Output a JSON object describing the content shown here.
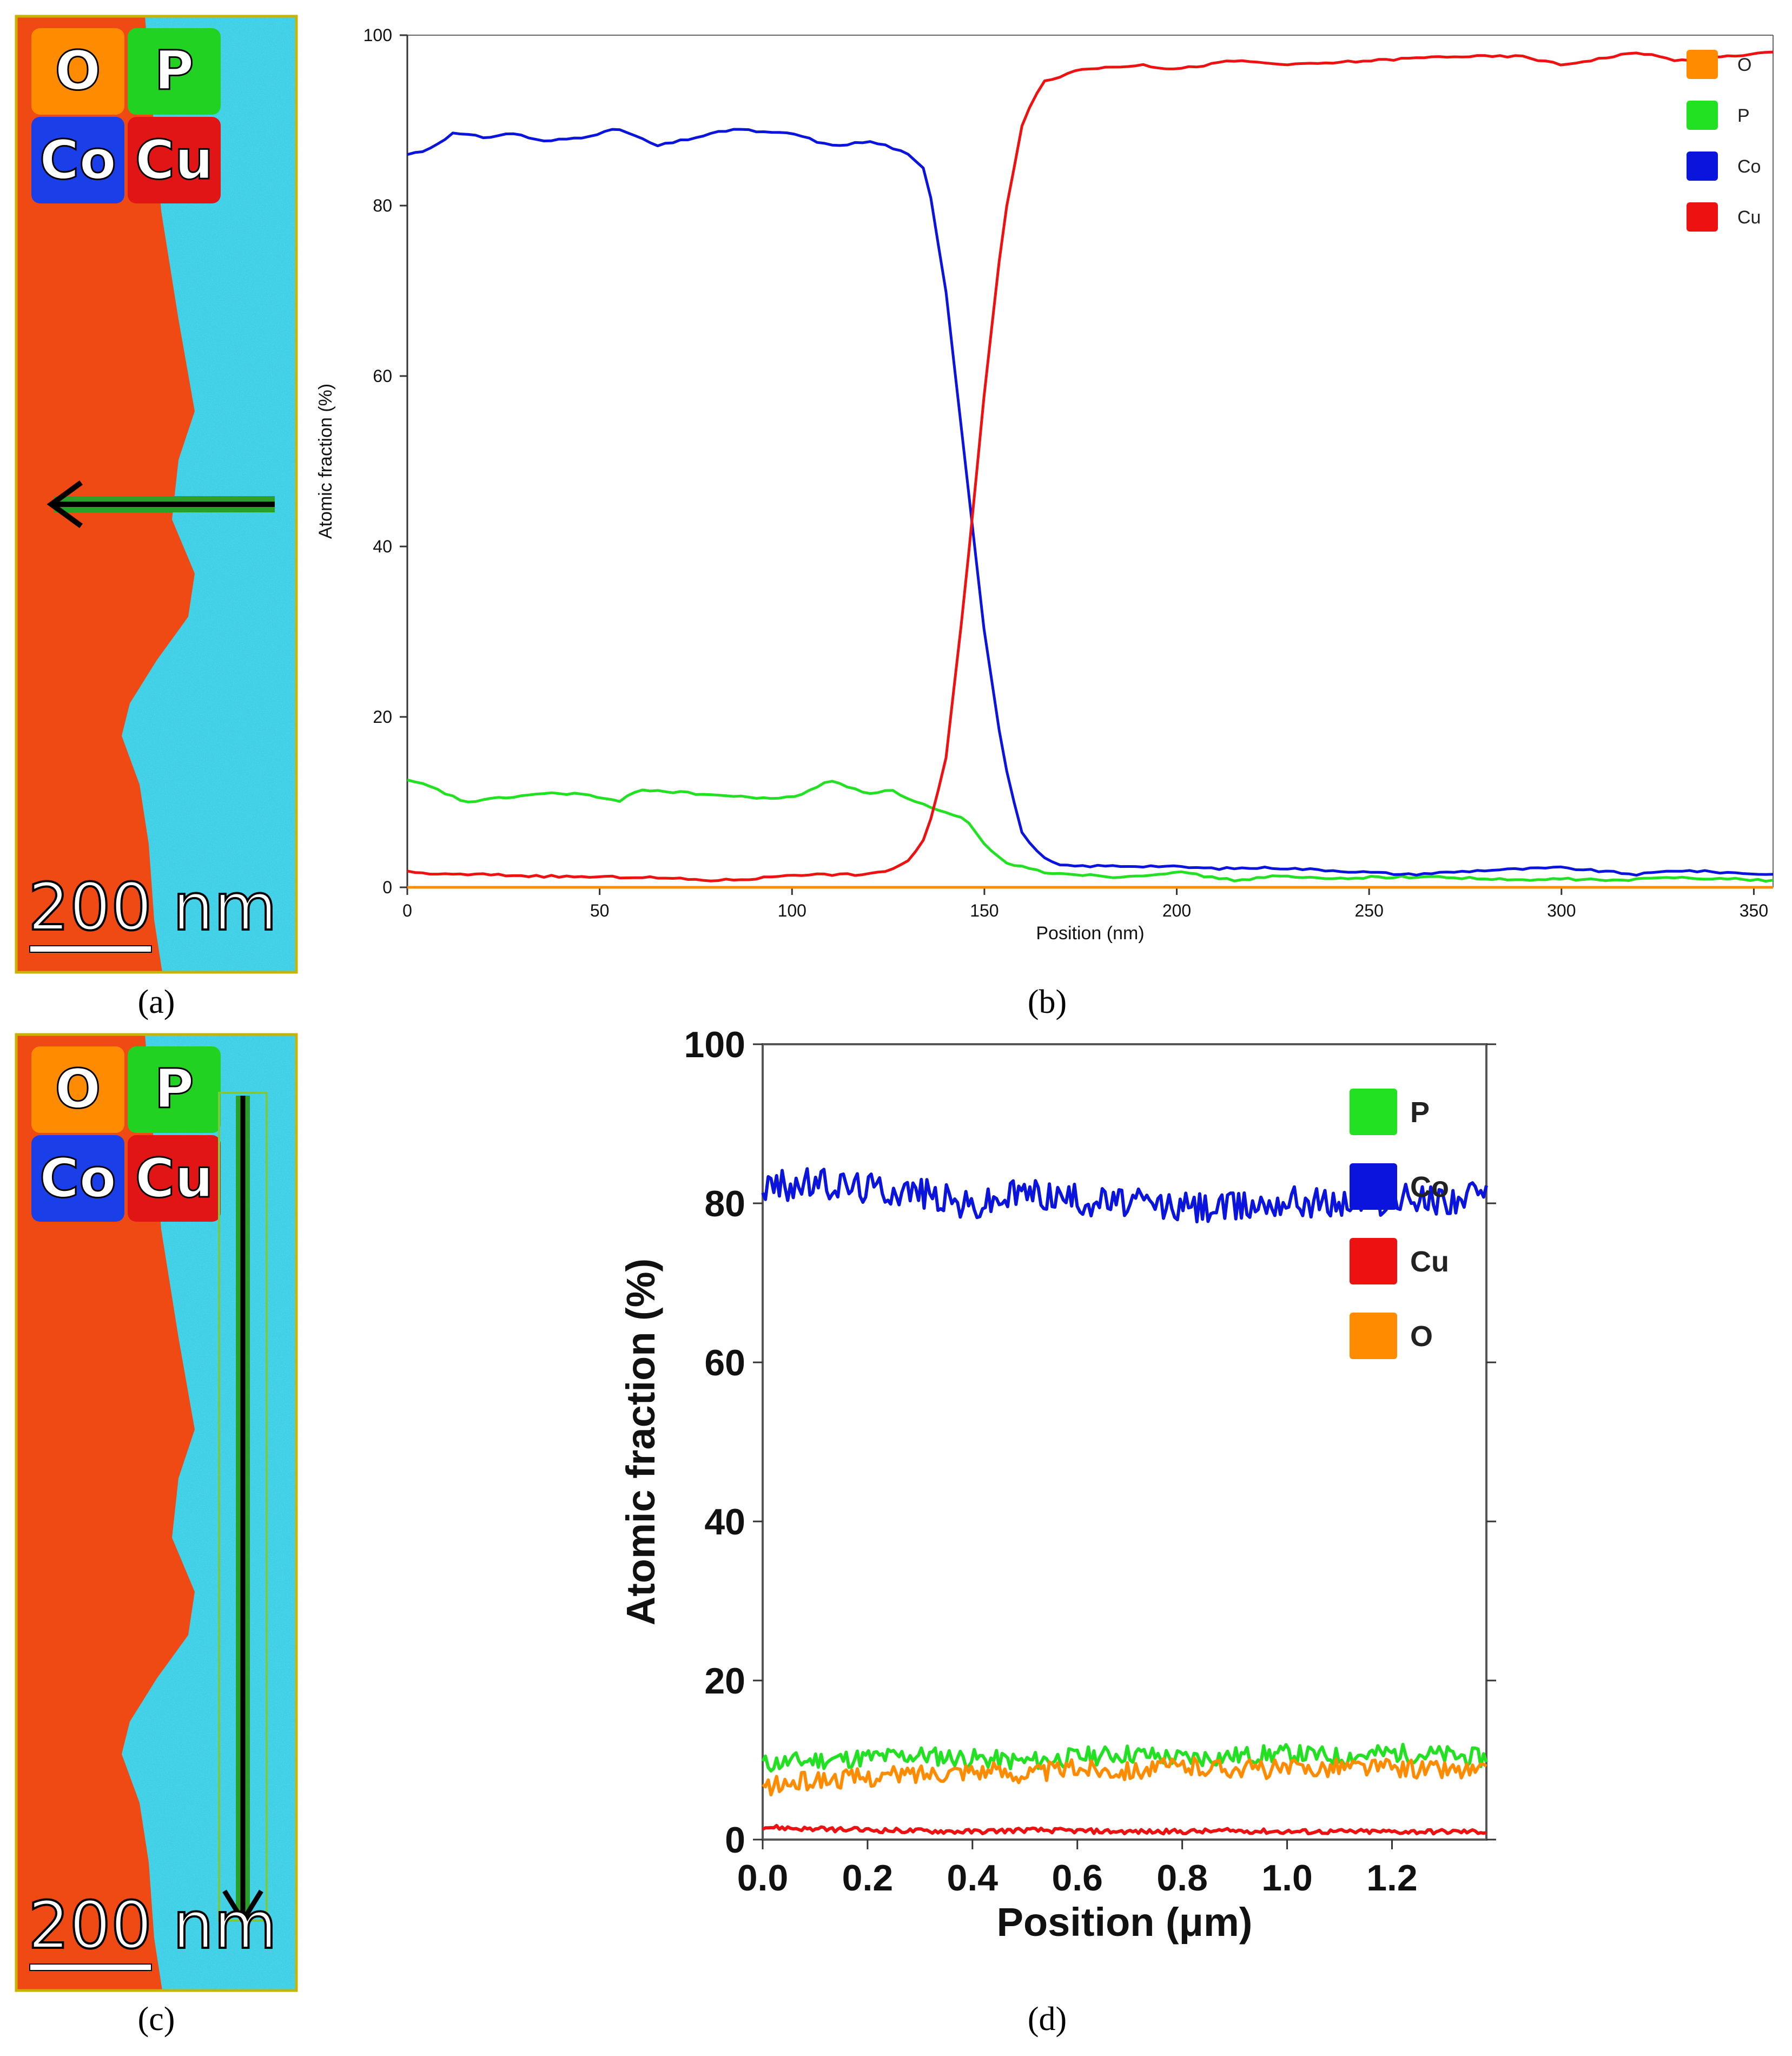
{
  "panels": {
    "a": {
      "label": "(a)",
      "legend_tiles": [
        "O",
        "P",
        "Co",
        "Cu"
      ],
      "scale_bar": "200 nm"
    },
    "b": {
      "label": "(b)"
    },
    "c": {
      "label": "(c)",
      "legend_tiles": [
        "O",
        "P",
        "Co",
        "Cu"
      ],
      "scale_bar": "200 nm"
    },
    "d": {
      "label": "(d)"
    }
  },
  "colors": {
    "O": "#ff8c00",
    "P": "#22e022",
    "Co": "#0a14dc",
    "Cu": "#ee1111",
    "map_cu": "#f04a14",
    "map_co": "#41cfe6",
    "frame": "#c8b400"
  },
  "chart_data": [
    {
      "id": "b",
      "type": "line",
      "title": "",
      "xlabel": "Position (nm)",
      "ylabel": "Atomic fraction (%)",
      "xlim": [
        0,
        355
      ],
      "ylim": [
        0,
        100
      ],
      "xticks": [
        0,
        50,
        100,
        150,
        200,
        250,
        300,
        350
      ],
      "yticks": [
        0,
        20,
        40,
        60,
        80,
        100
      ],
      "legend": [
        "O",
        "P",
        "Co",
        "Cu"
      ],
      "series": [
        {
          "name": "O",
          "x": [
            0,
            355
          ],
          "values": [
            0,
            0
          ]
        },
        {
          "name": "P",
          "x": [
            0,
            5,
            15,
            25,
            35,
            45,
            55,
            60,
            75,
            90,
            100,
            110,
            120,
            125,
            130,
            138,
            145,
            150,
            155,
            165,
            175,
            185,
            200,
            215,
            225,
            240,
            250,
            270,
            290,
            300,
            315,
            330,
            355
          ],
          "values": [
            12.5,
            12,
            10,
            10.5,
            11,
            11,
            10,
            11.5,
            11,
            10.5,
            10.5,
            12.5,
            11,
            11.5,
            10.5,
            9,
            8,
            5,
            3,
            1.8,
            1.5,
            1.2,
            1.8,
            0.8,
            1.3,
            1,
            1.2,
            1.2,
            0.8,
            1,
            0.8,
            1.2,
            0.8
          ]
        },
        {
          "name": "Co",
          "x": [
            0,
            5,
            12,
            20,
            28,
            35,
            45,
            55,
            60,
            65,
            75,
            85,
            95,
            100,
            110,
            120,
            125,
            130,
            135,
            140,
            145,
            150,
            155,
            160,
            165,
            170,
            180,
            195,
            210,
            225,
            240,
            260,
            280,
            300,
            320,
            330,
            355
          ],
          "values": [
            86,
            86.5,
            88.5,
            88,
            88.5,
            87.5,
            88,
            89,
            88,
            87,
            88,
            89,
            88.5,
            88.5,
            87,
            87.5,
            87,
            86,
            84,
            70,
            50,
            30,
            15,
            6,
            3.5,
            2.5,
            2.5,
            2.5,
            2.2,
            2.3,
            2,
            1.5,
            2,
            2.3,
            1.5,
            2,
            1.5
          ]
        },
        {
          "name": "Cu",
          "x": [
            0,
            10,
            20,
            35,
            50,
            60,
            70,
            80,
            90,
            100,
            110,
            120,
            125,
            130,
            135,
            140,
            145,
            150,
            155,
            160,
            165,
            175,
            190,
            200,
            215,
            230,
            250,
            270,
            290,
            300,
            320,
            330,
            355
          ],
          "values": [
            1.8,
            1.5,
            1.5,
            1.3,
            1.2,
            1.2,
            1,
            0.8,
            1,
            1.5,
            1.5,
            1.5,
            2,
            3,
            6,
            15,
            35,
            58,
            78,
            90,
            94.5,
            96,
            96.5,
            96,
            97,
            96.5,
            97,
            97.5,
            97.5,
            96.5,
            98,
            97,
            98
          ]
        }
      ]
    },
    {
      "id": "d",
      "type": "line",
      "title": "",
      "xlabel": "Position (μm)",
      "ylabel": "Atomic fraction (%)",
      "xlim": [
        0.0,
        1.38
      ],
      "ylim": [
        0,
        100
      ],
      "xticks": [
        "0.0",
        "0.2",
        "0.4",
        "0.6",
        "0.8",
        "1.0",
        "1.2"
      ],
      "yticks": [
        0,
        20,
        40,
        60,
        80,
        100
      ],
      "legend": [
        "P",
        "Co",
        "Cu",
        "O"
      ],
      "series": [
        {
          "name": "P",
          "x": [
            0.0,
            0.1,
            0.2,
            0.3,
            0.4,
            0.5,
            0.6,
            0.7,
            0.8,
            0.9,
            1.0,
            1.1,
            1.2,
            1.3,
            1.38
          ],
          "values": [
            9.5,
            10,
            10.3,
            10.6,
            10.2,
            9.8,
            10.4,
            10.8,
            10.2,
            10.5,
            10.8,
            10.4,
            10.9,
            10.6,
            10.2
          ]
        },
        {
          "name": "Co",
          "x": [
            0.0,
            0.1,
            0.2,
            0.3,
            0.4,
            0.5,
            0.6,
            0.7,
            0.8,
            0.9,
            1.0,
            1.1,
            1.2,
            1.3,
            1.38
          ],
          "values": [
            82,
            82.5,
            82,
            81.5,
            79.5,
            81.5,
            80.5,
            80,
            79.5,
            79.5,
            80.5,
            80,
            80.5,
            80.5,
            81
          ]
        },
        {
          "name": "Cu",
          "x": [
            0.0,
            0.1,
            0.2,
            0.3,
            0.4,
            0.5,
            0.6,
            0.7,
            0.8,
            0.9,
            1.0,
            1.1,
            1.2,
            1.3,
            1.38
          ],
          "values": [
            1.6,
            1.3,
            1.2,
            1.1,
            1.0,
            1.2,
            1.1,
            1.0,
            1.0,
            1.1,
            1.0,
            1.0,
            1.0,
            1.0,
            1.0
          ]
        },
        {
          "name": "O",
          "x": [
            0.0,
            0.1,
            0.2,
            0.3,
            0.4,
            0.5,
            0.6,
            0.7,
            0.8,
            0.9,
            1.0,
            1.1,
            1.2,
            1.3,
            1.38
          ],
          "values": [
            6.5,
            7.5,
            7.8,
            8.3,
            8.8,
            8.2,
            9.0,
            8.7,
            9.2,
            9.0,
            8.8,
            9.2,
            9.0,
            8.8,
            8.5
          ]
        }
      ]
    }
  ]
}
